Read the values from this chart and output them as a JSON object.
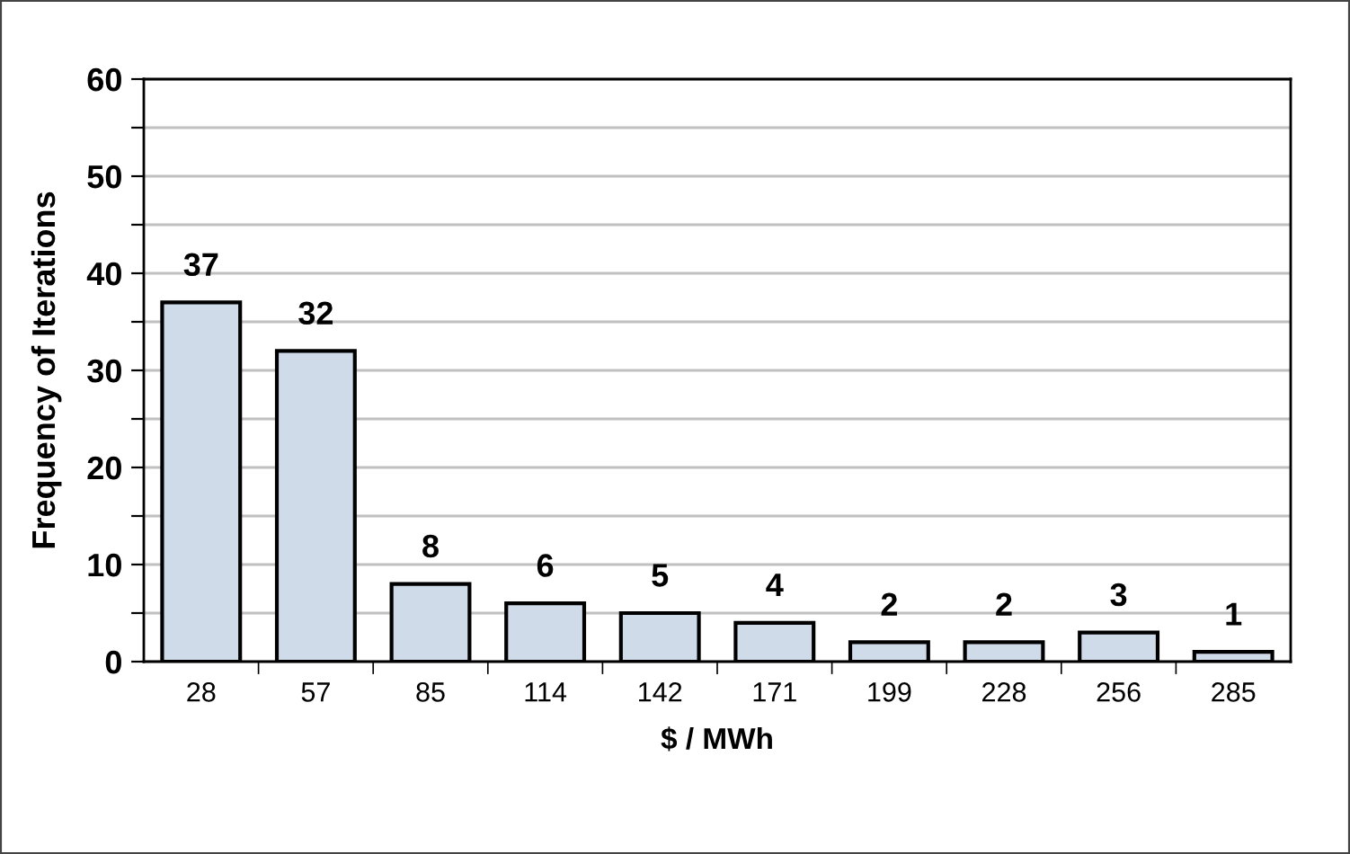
{
  "chart_data": {
    "type": "bar",
    "xlabel": "$ / MWh",
    "ylabel": "Frequency of Iterations",
    "categories": [
      "28",
      "57",
      "85",
      "114",
      "142",
      "171",
      "199",
      "228",
      "256",
      "285"
    ],
    "series": [
      {
        "color": "#d0dbea",
        "values": [
          37,
          32,
          8,
          6,
          5,
          4,
          2,
          2,
          3,
          1
        ]
      }
    ],
    "ylim": [
      0,
      60
    ],
    "yticks": [
      0,
      {
        "value": 5,
        "label": null
      },
      10,
      {
        "value": 15,
        "label": null
      },
      20,
      {
        "value": 25,
        "label": null
      },
      30,
      {
        "value": 35,
        "label": null
      },
      40,
      {
        "value": 45,
        "label": null
      },
      50,
      {
        "value": 55,
        "label": null
      },
      60
    ],
    "grid": "y",
    "data_labels": true
  }
}
